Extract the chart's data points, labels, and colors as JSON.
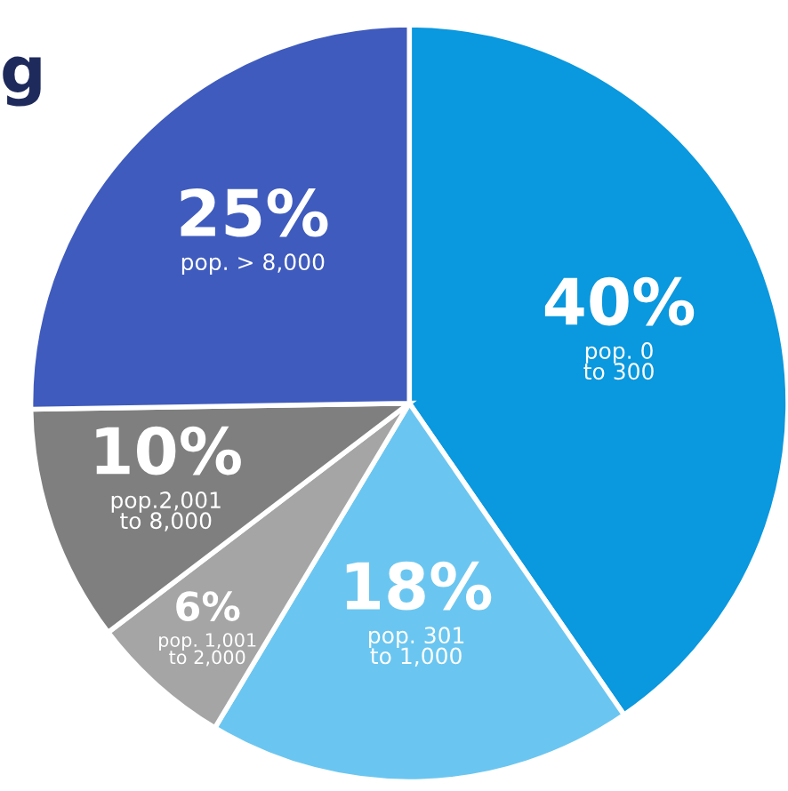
{
  "chart_data": {
    "type": "pie",
    "annotations": [
      "g"
    ],
    "categories": [
      "pop. 0\nto 300",
      "pop. 301\nto 1,000",
      "pop. 1,001\nto 2,000",
      "pop.2,001\nto 8,000",
      "pop. > 8,000"
    ],
    "values": [
      40,
      18,
      6,
      10,
      25
    ],
    "colors": [
      "#0a98de",
      "#6ac6f0",
      "#a5a5a5",
      "#7f7f7f",
      "#3f5bbd"
    ],
    "value_labels": [
      "40%",
      "18%",
      "6%",
      "10%",
      "25%"
    ]
  }
}
